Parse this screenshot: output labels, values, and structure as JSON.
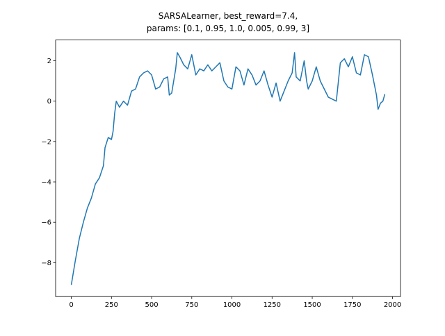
{
  "chart_data": {
    "type": "line",
    "title": [
      "SARSALearner, best_reward=7.4,",
      "params: [0.1, 0.95, 1.0, 0.005, 0.99, 3]"
    ],
    "x": [
      0,
      25,
      50,
      75,
      100,
      125,
      150,
      175,
      200,
      210,
      230,
      250,
      260,
      270,
      280,
      300,
      325,
      350,
      375,
      400,
      425,
      450,
      475,
      500,
      525,
      550,
      575,
      600,
      610,
      625,
      650,
      660,
      675,
      700,
      725,
      750,
      775,
      800,
      825,
      850,
      875,
      900,
      925,
      950,
      975,
      1000,
      1025,
      1050,
      1075,
      1100,
      1125,
      1150,
      1175,
      1200,
      1225,
      1250,
      1275,
      1300,
      1325,
      1350,
      1375,
      1390,
      1400,
      1425,
      1450,
      1465,
      1475,
      1500,
      1525,
      1550,
      1575,
      1600,
      1625,
      1650,
      1675,
      1700,
      1725,
      1750,
      1775,
      1800,
      1825,
      1850,
      1875,
      1900,
      1910,
      1925,
      1940,
      1952
    ],
    "series": [
      {
        "color": "#1f77b4",
        "values": [
          -9.1,
          -7.9,
          -6.8,
          -6.0,
          -5.3,
          -4.8,
          -4.1,
          -3.8,
          -3.2,
          -2.3,
          -1.8,
          -1.9,
          -1.5,
          -0.6,
          0.0,
          -0.3,
          0.0,
          -0.2,
          0.5,
          0.6,
          1.2,
          1.4,
          1.5,
          1.3,
          0.6,
          0.7,
          1.1,
          1.2,
          0.3,
          0.4,
          1.6,
          2.4,
          2.2,
          1.8,
          1.6,
          2.3,
          1.3,
          1.6,
          1.5,
          1.8,
          1.5,
          1.7,
          1.9,
          1.0,
          0.7,
          0.6,
          1.7,
          1.5,
          0.8,
          1.6,
          1.3,
          0.8,
          1.0,
          1.5,
          0.8,
          0.2,
          0.9,
          0.0,
          0.5,
          1.0,
          1.4,
          2.4,
          1.2,
          1.0,
          2.0,
          1.0,
          0.6,
          1.0,
          1.7,
          1.0,
          0.6,
          0.2,
          0.1,
          0.0,
          1.9,
          2.1,
          1.7,
          2.2,
          1.4,
          1.3,
          2.3,
          2.2,
          1.3,
          0.3,
          -0.4,
          -0.1,
          0.0,
          0.35
        ]
      }
    ],
    "xlim": [
      -97.6,
      2049.6
    ],
    "ylim": [
      -9.68,
      3.03
    ],
    "xticks": [
      0,
      250,
      500,
      750,
      1000,
      1250,
      1500,
      1750,
      2000
    ],
    "yticks": [
      {
        "value": -8,
        "label": "−8"
      },
      {
        "value": -6,
        "label": "−6"
      },
      {
        "value": -4,
        "label": "−4"
      },
      {
        "value": -2,
        "label": "−2"
      },
      0,
      2
    ]
  }
}
